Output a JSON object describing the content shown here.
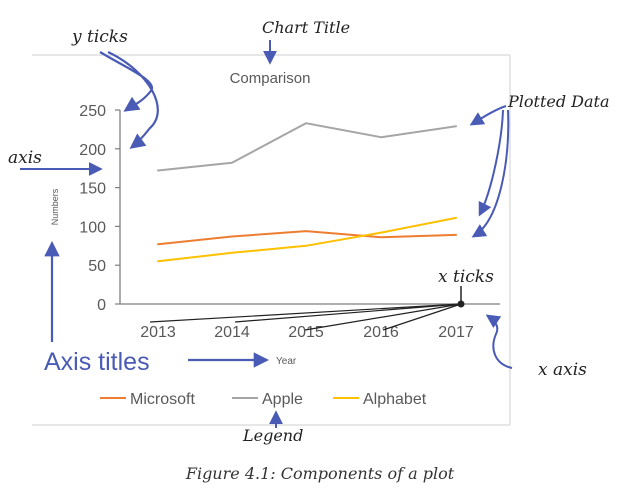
{
  "chart_data": {
    "type": "line",
    "title": "Comparison",
    "xlabel": "Year",
    "ylabel": "Numbers",
    "categories": [
      "2013",
      "2014",
      "2015",
      "2016",
      "2017"
    ],
    "yticks": [
      0,
      50,
      100,
      150,
      200,
      250
    ],
    "ylim": [
      0,
      250
    ],
    "grid": false,
    "legend_position": "bottom",
    "series": [
      {
        "name": "Microsoft",
        "color": "#ED7D31",
        "values": [
          77,
          87,
          94,
          86,
          89
        ]
      },
      {
        "name": "Apple",
        "color": "#A5A5A5",
        "values": [
          172,
          182,
          233,
          215,
          229
        ]
      },
      {
        "name": "Alphabet",
        "color": "#FFC000",
        "values": [
          55,
          66,
          75,
          92,
          111
        ]
      }
    ]
  },
  "annotations": {
    "chart_title": "Chart Title",
    "y_ticks": "y ticks",
    "plotted_data": "Plotted Data",
    "axis": "axis",
    "x_ticks": "x ticks",
    "x_axis": "x axis",
    "axis_titles": "Axis titles",
    "legend": "Legend",
    "color": "#4A5BB5"
  },
  "caption": "Figure 4.1:   Components of a plot"
}
